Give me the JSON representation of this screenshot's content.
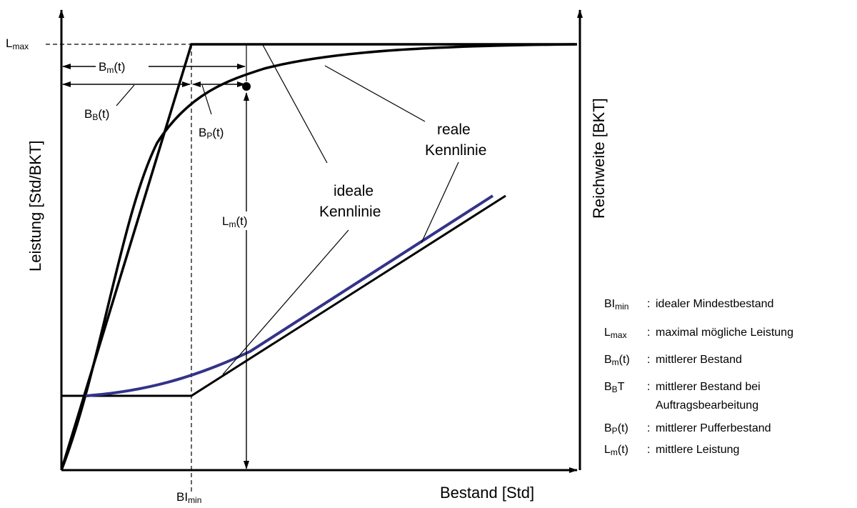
{
  "diagram": {
    "axes": {
      "y_left": "Leistung   [Std/BKT]",
      "y_right": "Reichweite  [BKT]",
      "x": "Bestand [Std]"
    },
    "ticks": {
      "lmax_main": "L",
      "lmax_sub": "max",
      "blmin_main": "BI",
      "blmin_sub": "min"
    },
    "annotations": {
      "bm": {
        "main": "B",
        "sub": "m",
        "rest": "(t)"
      },
      "bb": {
        "main": "B",
        "sub": "B",
        "rest": "(t)"
      },
      "bp": {
        "main": "B",
        "sub": "P",
        "rest": "(t)"
      },
      "lm": {
        "main": "L",
        "sub": "m",
        "rest": "(t)"
      },
      "ideal_line1": "ideale",
      "ideal_line2": "Kennlinie",
      "real_line1": "reale",
      "real_line2": "Kennlinie"
    },
    "legend": [
      {
        "main": "BI",
        "sub": "min",
        "rest": "",
        "sep": ":",
        "desc": "idealer Mindestbestand"
      },
      {
        "main": "L",
        "sub": "max",
        "rest": "",
        "sep": ":",
        "desc": "maximal mögliche Leistung"
      },
      {
        "main": "B",
        "sub": "m",
        "rest": "(t)",
        "sep": ":",
        "desc": "mittlerer Bestand"
      },
      {
        "main": "B",
        "sub": "B",
        "rest": "T",
        "sep": ":",
        "desc": "mittlerer Bestand bei"
      },
      {
        "main": "",
        "sub": "",
        "rest": "",
        "sep": "",
        "desc": "Auftragsbearbeitung"
      },
      {
        "main": "B",
        "sub": "P",
        "rest": "(t)",
        "sep": ":",
        "desc": "mittlerer Pufferbestand"
      },
      {
        "main": "L",
        "sub": "m",
        "rest": "(t)",
        "sep": ":",
        "desc": "mittlere Leistung"
      }
    ],
    "colors": {
      "ink": "#000000",
      "real_range_curve": "#33338a"
    }
  }
}
